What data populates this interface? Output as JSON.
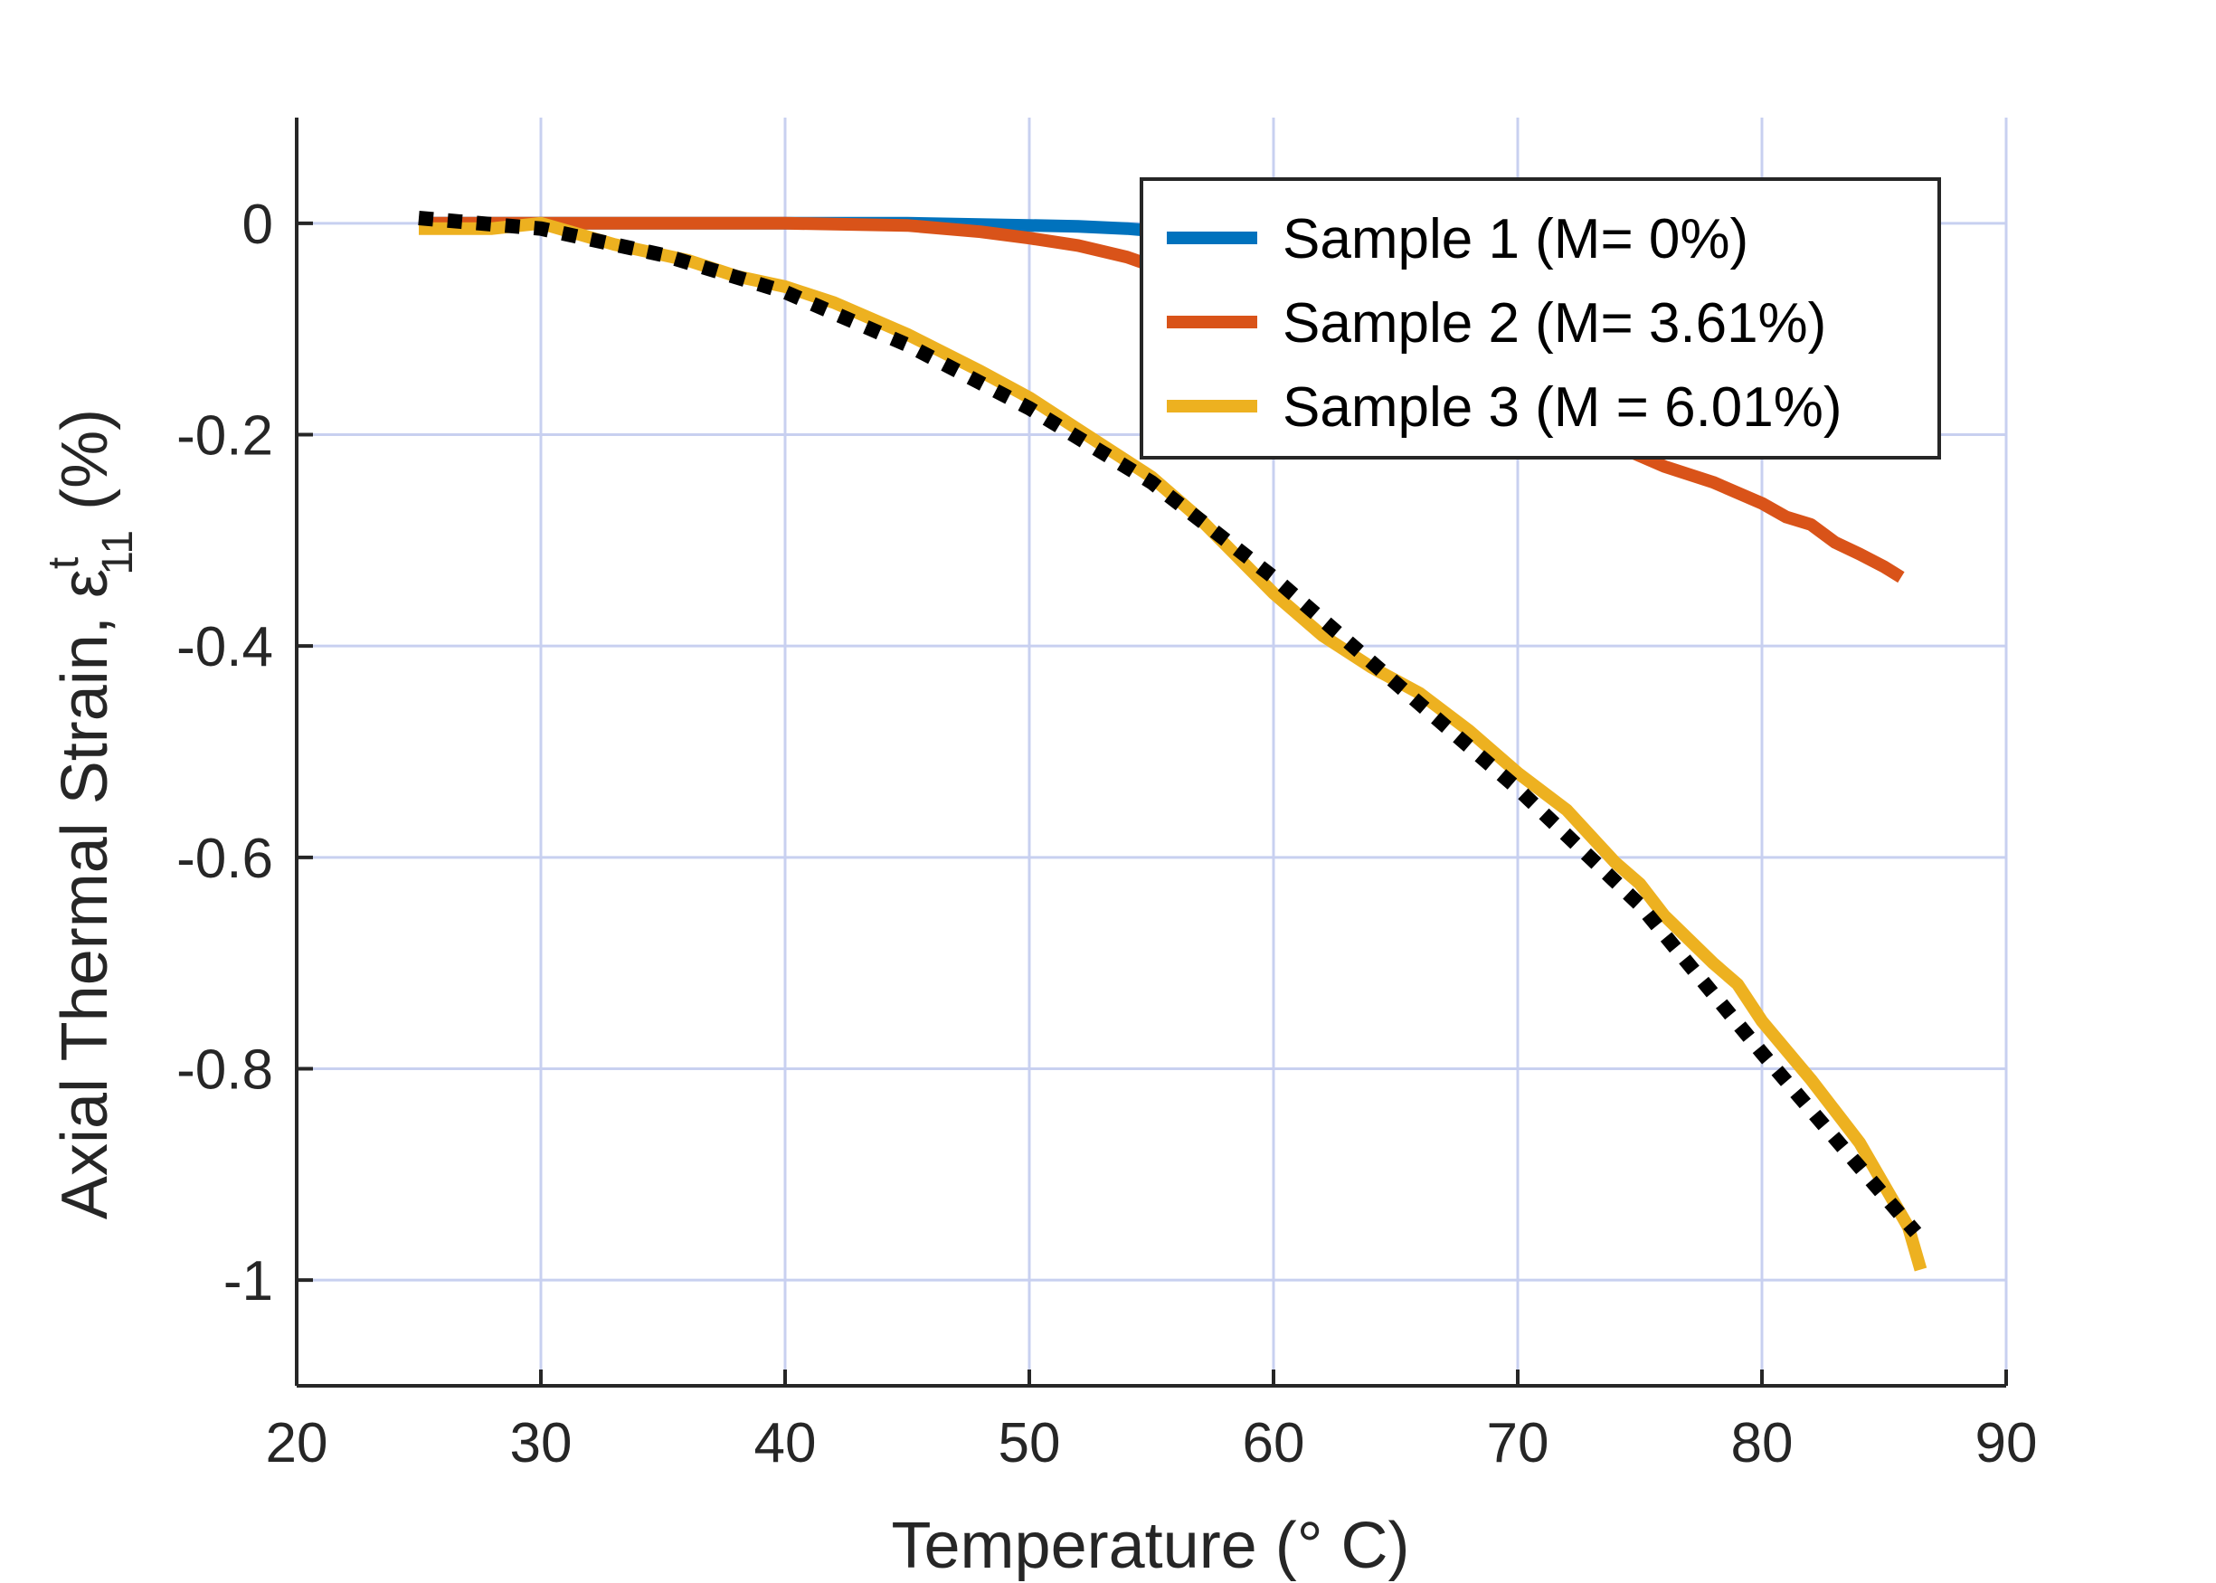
{
  "chart_data": {
    "type": "line",
    "xlabel": "Temperature (° C)",
    "ylabel_main": "Axial Thermal Strain, ε",
    "ylabel_sup": "t",
    "ylabel_sub": "11",
    "ylabel_unit": "(%)",
    "xlim": [
      20,
      90
    ],
    "ylim": [
      -1.1,
      0.1
    ],
    "xticks": [
      20,
      30,
      40,
      50,
      60,
      70,
      80,
      90
    ],
    "xtick_labels": [
      "20",
      "30",
      "40",
      "50",
      "60",
      "70",
      "80",
      "90"
    ],
    "yticks": [
      0,
      -0.2,
      -0.4,
      -0.6,
      -0.8,
      -1
    ],
    "ytick_labels": [
      "0",
      "-0.2",
      "-0.4",
      "-0.6",
      "-0.8",
      "-1"
    ],
    "grid": true,
    "legend_position": "top-right",
    "series": [
      {
        "name": "Sample 1 (M= 0%)",
        "color": "#0072BD",
        "x": [
          25,
          30,
          35,
          40,
          45,
          50,
          52,
          54,
          55
        ],
        "y": [
          0,
          0,
          0,
          0,
          0,
          -0.002,
          -0.003,
          -0.005,
          -0.007
        ]
      },
      {
        "name": "Sample 2 (M= 3.61%)",
        "color": "#D95319",
        "x": [
          25,
          30,
          35,
          40,
          45,
          48,
          50,
          52,
          54,
          55,
          60,
          65,
          70,
          74,
          76,
          78,
          80,
          81,
          82,
          83,
          84,
          85,
          85.7
        ],
        "y": [
          0,
          0,
          0,
          0,
          -0.002,
          -0.008,
          -0.014,
          -0.021,
          -0.032,
          -0.04,
          -0.08,
          -0.12,
          -0.17,
          -0.21,
          -0.23,
          -0.245,
          -0.265,
          -0.278,
          -0.285,
          -0.302,
          -0.313,
          -0.325,
          -0.335
        ]
      },
      {
        "name": "Sample 3 (M = 6.01%)",
        "color": "#EDB120",
        "x": [
          25,
          28,
          30,
          33,
          36,
          38,
          40,
          42,
          45,
          48,
          50,
          52,
          55,
          57,
          60,
          62,
          64,
          66,
          68,
          70,
          72,
          74,
          75,
          76,
          78,
          79,
          80,
          82,
          84,
          85,
          86,
          86.5
        ],
        "y": [
          -0.005,
          -0.005,
          0,
          -0.02,
          -0.035,
          -0.05,
          -0.06,
          -0.075,
          -0.105,
          -0.14,
          -0.165,
          -0.195,
          -0.24,
          -0.28,
          -0.35,
          -0.39,
          -0.42,
          -0.445,
          -0.48,
          -0.52,
          -0.555,
          -0.605,
          -0.625,
          -0.655,
          -0.7,
          -0.72,
          -0.755,
          -0.81,
          -0.87,
          -0.91,
          -0.95,
          -0.99
        ]
      },
      {
        "name": "",
        "color": "#000000",
        "dashed": true,
        "x": [
          25,
          30,
          35,
          40,
          45,
          50,
          55,
          60,
          65,
          70,
          75,
          80,
          85,
          86.3
        ],
        "y": [
          0.005,
          -0.005,
          -0.03,
          -0.065,
          -0.115,
          -0.175,
          -0.245,
          -0.335,
          -0.435,
          -0.535,
          -0.645,
          -0.785,
          -0.92,
          -0.955
        ]
      }
    ]
  }
}
